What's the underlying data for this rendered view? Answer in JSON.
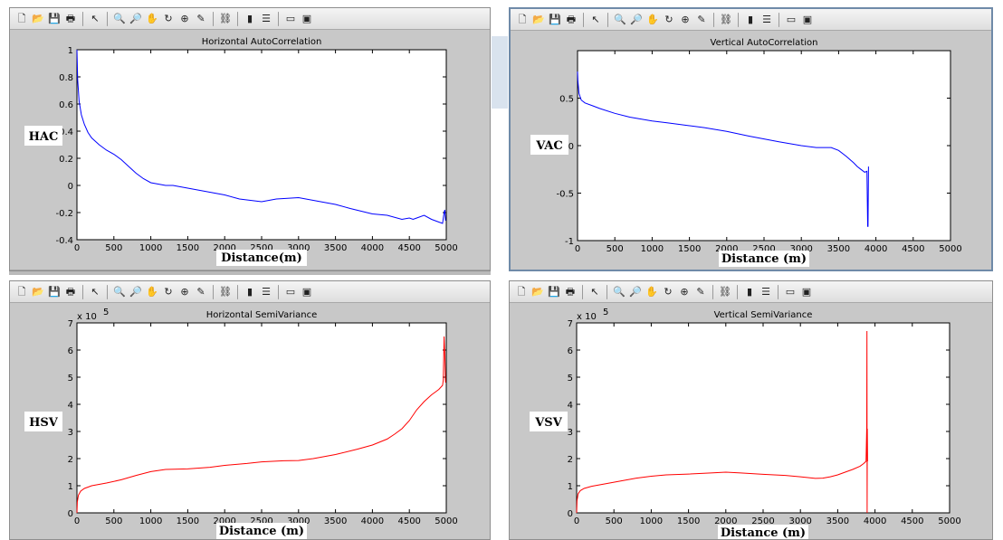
{
  "toolbar_icons": [
    "new-icon",
    "open-icon",
    "save-icon",
    "print-icon",
    "sep",
    "pointer-icon",
    "sep",
    "zoom-in-icon",
    "zoom-out-icon",
    "pan-icon",
    "rotate-icon",
    "datacursor-icon",
    "brush-icon",
    "sep",
    "link-icon",
    "sep",
    "colorbar-icon",
    "legend-icon",
    "sep",
    "hide-plottools-icon",
    "show-plottools-icon"
  ],
  "toolbar_glyphs": {
    "new-icon": "🗋",
    "open-icon": "📂",
    "save-icon": "💾",
    "print-icon": "🖶",
    "pointer-icon": "↖",
    "zoom-in-icon": "🔍",
    "zoom-out-icon": "🔎",
    "pan-icon": "✋",
    "rotate-icon": "↻",
    "datacursor-icon": "⊕",
    "brush-icon": "✎",
    "link-icon": "⛓",
    "colorbar-icon": "▮",
    "legend-icon": "☰",
    "hide-plottools-icon": "▭",
    "show-plottools-icon": "▣"
  },
  "chart_data": [
    {
      "type": "line",
      "title": "Horizontal AutoCorrelation",
      "ylabel": "HAC",
      "xlabel": "Distance(m)",
      "color": "#0000ff",
      "xlim": [
        0,
        5000
      ],
      "ylim": [
        -0.4,
        1
      ],
      "xticks": [
        0,
        500,
        1000,
        1500,
        2000,
        2500,
        3000,
        3500,
        4000,
        4500,
        5000
      ],
      "yticks": [
        -0.4,
        -0.2,
        0,
        0.2,
        0.4,
        0.6,
        0.8,
        1
      ],
      "ytick_labels": [
        "-0.4",
        "-0.2",
        "0",
        "0.2",
        "0.4",
        "0.6",
        "0.8",
        "1"
      ],
      "y_multiplier": "",
      "x": [
        0,
        10,
        30,
        60,
        100,
        150,
        200,
        300,
        400,
        500,
        600,
        700,
        800,
        900,
        1000,
        1100,
        1200,
        1300,
        1400,
        1500,
        1700,
        2000,
        2200,
        2500,
        2700,
        3000,
        3200,
        3500,
        3700,
        4000,
        4200,
        4400,
        4500,
        4550,
        4600,
        4700,
        4800,
        4900,
        4950,
        4970,
        4980,
        4990
      ],
      "y": [
        1.0,
        0.78,
        0.62,
        0.52,
        0.45,
        0.39,
        0.35,
        0.3,
        0.26,
        0.23,
        0.19,
        0.14,
        0.09,
        0.05,
        0.02,
        0.01,
        0.0,
        0.0,
        -0.01,
        -0.02,
        -0.04,
        -0.07,
        -0.1,
        -0.12,
        -0.1,
        -0.09,
        -0.11,
        -0.14,
        -0.17,
        -0.21,
        -0.22,
        -0.25,
        -0.24,
        -0.25,
        -0.24,
        -0.22,
        -0.25,
        -0.27,
        -0.28,
        -0.2,
        -0.18,
        -0.26
      ]
    },
    {
      "type": "line",
      "title": "Vertical AutoCorrelation",
      "ylabel": "VAC",
      "xlabel": "Distance (m)",
      "color": "#0000ff",
      "xlim": [
        0,
        5000
      ],
      "ylim": [
        -1,
        1
      ],
      "xticks": [
        0,
        500,
        1000,
        1500,
        2000,
        2500,
        3000,
        3500,
        4000,
        4500,
        5000
      ],
      "yticks": [
        -1,
        -0.5,
        0,
        0.5,
        1
      ],
      "ytick_labels": [
        "-1",
        "-0.5",
        "0",
        "0.5",
        ""
      ],
      "y_multiplier": "",
      "x": [
        0,
        5,
        20,
        50,
        100,
        200,
        300,
        500,
        700,
        1000,
        1200,
        1500,
        1700,
        2000,
        2300,
        2500,
        2700,
        3000,
        3200,
        3400,
        3500,
        3600,
        3700,
        3750,
        3800,
        3850,
        3880,
        3890,
        3895,
        3900
      ],
      "y": [
        0.78,
        0.68,
        0.55,
        0.48,
        0.45,
        0.42,
        0.39,
        0.34,
        0.3,
        0.26,
        0.24,
        0.21,
        0.19,
        0.15,
        0.1,
        0.07,
        0.04,
        0.0,
        -0.02,
        -0.02,
        -0.05,
        -0.11,
        -0.18,
        -0.22,
        -0.25,
        -0.28,
        -0.27,
        -0.85,
        -0.85,
        -0.22
      ]
    },
    {
      "type": "line",
      "title": "Horizontal SemiVariance",
      "ylabel": "HSV",
      "xlabel": "Distance (m)",
      "color": "#ff0000",
      "xlim": [
        0,
        5000
      ],
      "ylim": [
        0,
        7
      ],
      "xticks": [
        0,
        500,
        1000,
        1500,
        2000,
        2500,
        3000,
        3500,
        4000,
        4500,
        5000
      ],
      "yticks": [
        0,
        1,
        2,
        3,
        4,
        5,
        6,
        7
      ],
      "ytick_labels": [
        "0",
        "1",
        "2",
        "3",
        "4",
        "5",
        "6",
        "7"
      ],
      "y_multiplier": "x 10",
      "y_exponent": "5",
      "x": [
        0,
        5,
        20,
        50,
        100,
        200,
        400,
        600,
        800,
        1000,
        1200,
        1500,
        1800,
        2000,
        2300,
        2500,
        2800,
        3000,
        3200,
        3500,
        3800,
        4000,
        4200,
        4300,
        4400,
        4500,
        4600,
        4700,
        4800,
        4850,
        4900,
        4950,
        4960,
        4970,
        4980,
        4990
      ],
      "y": [
        0,
        0.4,
        0.65,
        0.8,
        0.9,
        1.0,
        1.1,
        1.22,
        1.38,
        1.52,
        1.6,
        1.62,
        1.68,
        1.75,
        1.82,
        1.88,
        1.92,
        1.93,
        2.0,
        2.15,
        2.35,
        2.5,
        2.72,
        2.9,
        3.1,
        3.4,
        3.8,
        4.1,
        4.35,
        4.45,
        4.55,
        4.7,
        4.9,
        6.5,
        5.8,
        4.8
      ]
    },
    {
      "type": "line",
      "title": "Vertical SemiVariance",
      "ylabel": "VSV",
      "xlabel": "Distance (m)",
      "color": "#ff0000",
      "xlim": [
        0,
        5000
      ],
      "ylim": [
        0,
        7
      ],
      "xticks": [
        0,
        500,
        1000,
        1500,
        2000,
        2500,
        3000,
        3500,
        4000,
        4500,
        5000
      ],
      "yticks": [
        0,
        1,
        2,
        3,
        4,
        5,
        6,
        7
      ],
      "ytick_labels": [
        "0",
        "1",
        "2",
        "3",
        "4",
        "5",
        "6",
        "7"
      ],
      "y_multiplier": "x 10",
      "y_exponent": "5",
      "x": [
        0,
        5,
        20,
        50,
        100,
        200,
        400,
        600,
        800,
        1000,
        1200,
        1500,
        1800,
        2000,
        2200,
        2500,
        2800,
        3000,
        3200,
        3300,
        3400,
        3500,
        3600,
        3700,
        3800,
        3850,
        3880,
        3890,
        3892,
        3895,
        3897,
        3900
      ],
      "y": [
        0,
        0.45,
        0.7,
        0.82,
        0.9,
        0.98,
        1.08,
        1.18,
        1.28,
        1.35,
        1.4,
        1.43,
        1.47,
        1.5,
        1.47,
        1.42,
        1.38,
        1.33,
        1.27,
        1.28,
        1.33,
        1.4,
        1.5,
        1.6,
        1.72,
        1.82,
        1.9,
        3.2,
        6.7,
        0,
        3.1,
        1.9
      ]
    }
  ]
}
